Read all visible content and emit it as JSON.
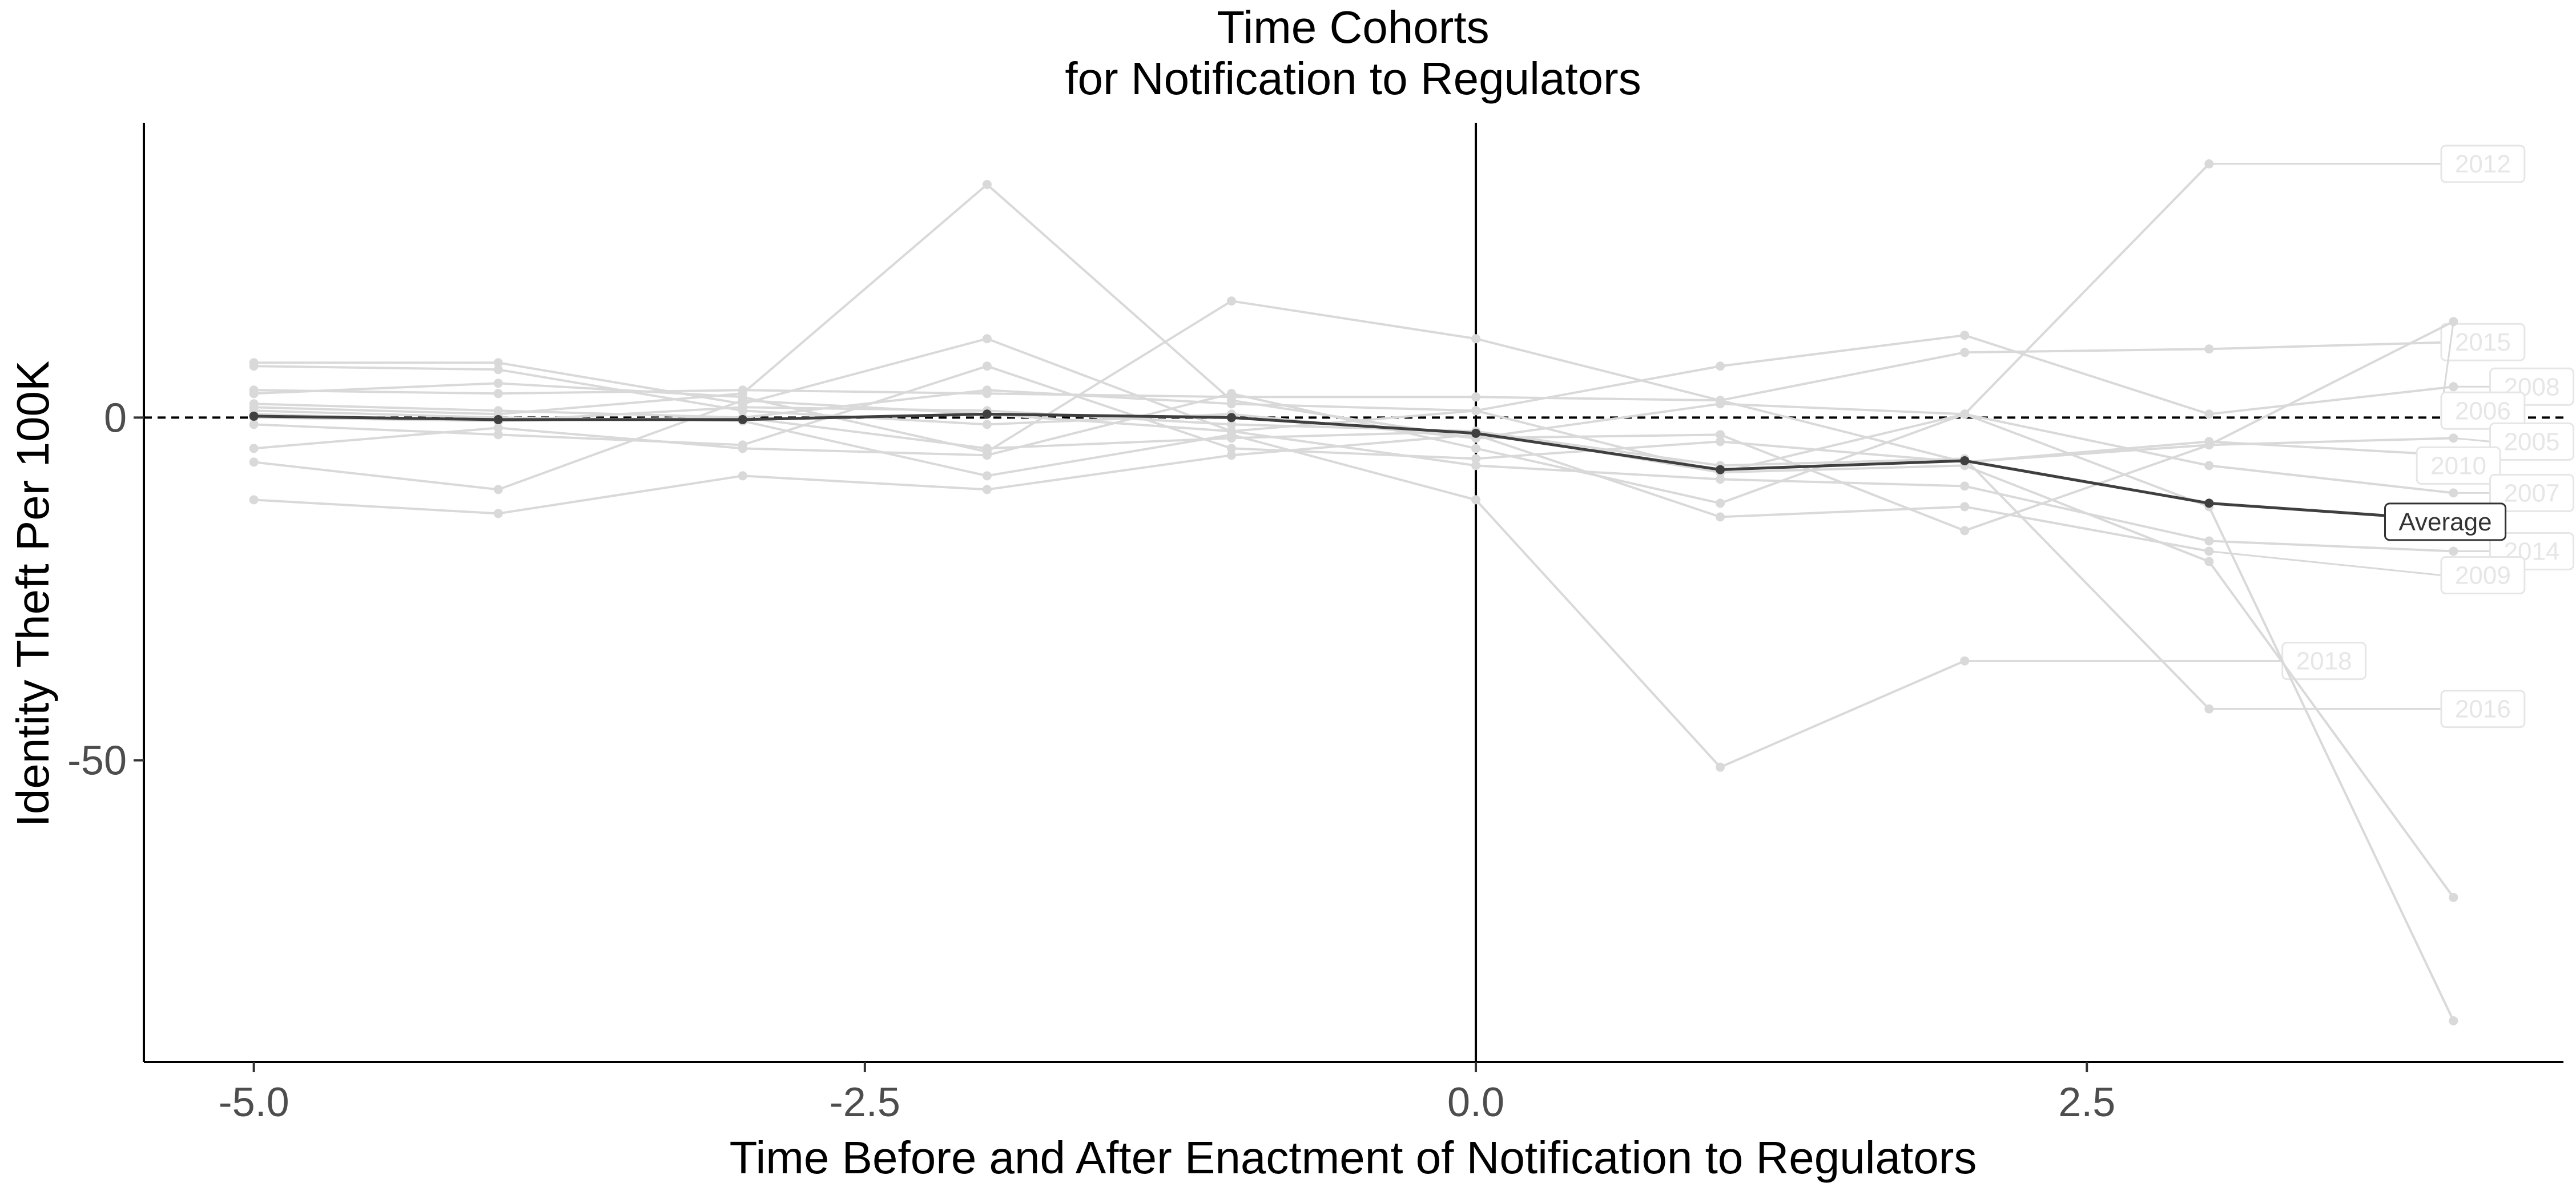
{
  "chart_data": {
    "type": "line",
    "title": "Time Cohorts",
    "subtitle": "for Notification to Regulators",
    "xlabel": "Time Before and After Enactment of Notification to Regulators",
    "ylabel": "Identity Theft Per 100K",
    "xlim": [
      -5.45,
      4.45
    ],
    "ylim": [
      -94,
      43
    ],
    "x_ticks": [
      -5.0,
      -2.5,
      0.0,
      2.5
    ],
    "x_tick_labels": [
      "-5.0",
      "-2.5",
      "0.0",
      "2.5"
    ],
    "y_ticks": [
      0,
      -50
    ],
    "y_tick_labels": [
      "0",
      "-50"
    ],
    "reference_lines": {
      "vertical_x": 0,
      "horizontal_y": 0,
      "horizontal_style": "dashed"
    },
    "grid": false,
    "colors": {
      "cohort": "#d9d9d9",
      "average": "#3f3f3f",
      "axis": "#000000"
    },
    "series": [
      {
        "name": "2012",
        "x": [
          -5,
          -4,
          -3,
          -2,
          -1,
          0,
          1,
          2,
          3
        ],
        "y": [
          1.5,
          0.5,
          3.5,
          34,
          2.5,
          -3,
          2,
          0.5,
          37
        ],
        "label_x": 3.95,
        "label_y": 37
      },
      {
        "name": "2015",
        "x": [
          -5,
          -4,
          -3,
          -2,
          -1,
          0,
          1,
          2,
          3,
          4
        ],
        "y": [
          4,
          3.5,
          4,
          3.5,
          3,
          3,
          2.5,
          9.5,
          10,
          11
        ],
        "label_x": 3.95,
        "label_y": 11
      },
      {
        "name": "2008",
        "x": [
          -5,
          -4,
          -3,
          -2,
          -1,
          0,
          1,
          2,
          3,
          4
        ],
        "y": [
          8,
          8,
          2,
          11.5,
          -2,
          1,
          7.5,
          12,
          0.5,
          4.5
        ],
        "label_x": 4.15,
        "label_y": 4.5
      },
      {
        "name": "2006",
        "x": [
          -5,
          -4,
          -3,
          -2,
          -1,
          0,
          1,
          2,
          3,
          4
        ],
        "y": [
          3.5,
          5,
          3,
          -5,
          17,
          11.5,
          2.5,
          -6.5,
          -4,
          14
        ],
        "label_x": 3.95,
        "label_y": 1
      },
      {
        "name": "2005",
        "x": [
          -5,
          -4,
          -3,
          -2,
          -1,
          0,
          1,
          2,
          3,
          4
        ],
        "y": [
          7.5,
          7,
          1,
          -1,
          0.5,
          -3,
          -2.5,
          -16.5,
          -4,
          -3
        ],
        "label_x": 4.15,
        "label_y": -3.5
      },
      {
        "name": "2010",
        "x": [
          -5,
          -4,
          -3,
          -2,
          -1,
          0,
          1,
          2,
          3,
          4
        ],
        "y": [
          -1,
          -2.5,
          -4,
          7.5,
          -4.5,
          -6,
          -3.5,
          -6.5,
          -3.5,
          -5.5
        ],
        "label_x": 3.85,
        "label_y": -7
      },
      {
        "name": "2007",
        "x": [
          -5,
          -4,
          -3,
          -2,
          -1,
          0,
          1,
          2,
          3,
          4
        ],
        "y": [
          -4.5,
          -1.5,
          -4.5,
          -5.5,
          3.5,
          -4.5,
          -12.5,
          0.5,
          -7,
          -11
        ],
        "label_x": 4.15,
        "label_y": -11
      },
      {
        "name": "2014",
        "x": [
          -5,
          -4,
          -3,
          -2,
          -1,
          0,
          1,
          2,
          3,
          4
        ],
        "y": [
          -6.5,
          -10.5,
          2.5,
          0.5,
          -2,
          -7,
          -9,
          -10,
          -18,
          -19.5
        ],
        "label_x": 4.15,
        "label_y": -19.5
      },
      {
        "name": "2009",
        "x": [
          -5,
          -4,
          -3,
          -2,
          -1,
          0,
          1,
          2,
          3
        ],
        "y": [
          -12,
          -14,
          -8.5,
          -10.5,
          -5.5,
          -2.5,
          -14.5,
          -13,
          -19.5
        ],
        "label_x": 3.95,
        "label_y": -23
      },
      {
        "name": "2018",
        "x": [
          -5,
          -4,
          -3,
          -2,
          -1,
          0,
          1,
          2
        ],
        "y": [
          1,
          0,
          -0.5,
          -8.5,
          -2.5,
          -12,
          -51,
          -35.5
        ],
        "label_x": 3.3,
        "label_y": -35.5
      },
      {
        "name": "2016",
        "x": [
          -5,
          -4,
          -3,
          -2,
          -1,
          0,
          1,
          2,
          3
        ],
        "y": [
          0.5,
          -0.5,
          1.5,
          1,
          -1,
          -2,
          -7,
          -6,
          -42.5
        ],
        "label_x": 3.95,
        "label_y": -42.5
      },
      {
        "name": "",
        "x": [
          -5,
          -4,
          -3,
          -2,
          -1,
          0,
          1,
          2,
          3,
          4
        ],
        "y": [
          2,
          1,
          0,
          4,
          2,
          1,
          -8,
          -7,
          -21,
          -70
        ]
      },
      {
        "name": "",
        "x": [
          -5,
          -4,
          -3,
          -2,
          -1,
          0,
          1,
          2,
          3,
          4
        ],
        "y": [
          0,
          -0.5,
          0,
          -4.5,
          -3,
          -2,
          -8,
          0.5,
          -13,
          -88
        ]
      }
    ],
    "average": {
      "name": "Average",
      "x": [
        -5,
        -4,
        -3,
        -2,
        -1,
        0,
        1,
        2,
        3,
        4
      ],
      "y": [
        0.2,
        -0.3,
        -0.3,
        0.5,
        0,
        -2.3,
        -7.6,
        -6.3,
        -12.5,
        -15
      ],
      "label_x": 3.72,
      "label_y": -15.2
    }
  }
}
